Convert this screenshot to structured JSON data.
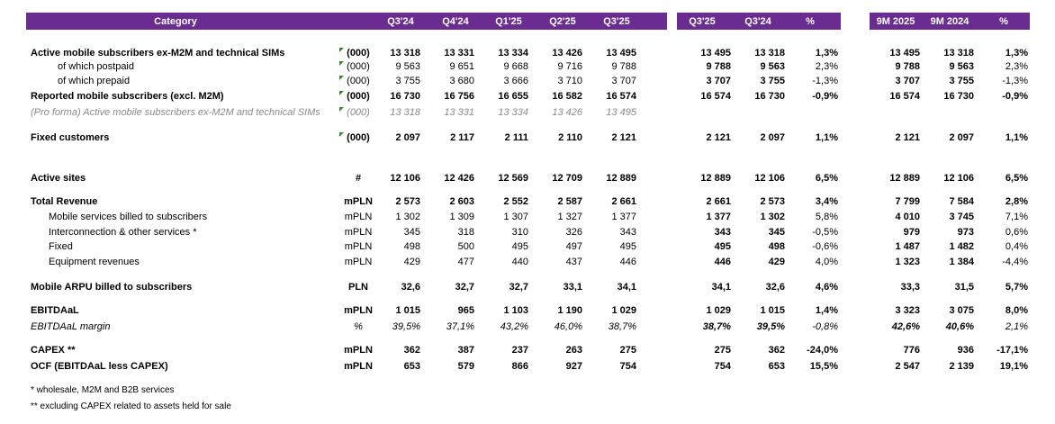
{
  "header": {
    "category": "Category",
    "quarters": [
      "Q3'24",
      "Q4'24",
      "Q1'25",
      "Q2'25",
      "Q3'25"
    ],
    "yoy": [
      "Q3'25",
      "Q3'24",
      "%"
    ],
    "ytd": [
      "9M 2025",
      "9M 2024",
      "%"
    ]
  },
  "colors": {
    "header_bg": "#6b2c91",
    "flag": "#2e8b2e"
  },
  "rows": [
    {
      "label": "Active mobile subscribers ex-M2M and technical SIMs",
      "unit": "(000)",
      "q": [
        "13 318",
        "13 331",
        "13 334",
        "13 426",
        "13 495"
      ],
      "y": [
        "13 495",
        "13 318",
        "1,3%"
      ],
      "t": [
        "13 495",
        "13 318",
        "1,3%"
      ]
    },
    {
      "label": "of which postpaid",
      "unit": "(000)",
      "q": [
        "9 563",
        "9 651",
        "9 668",
        "9 716",
        "9 788"
      ],
      "y": [
        "9 788",
        "9 563",
        "2,3%"
      ],
      "t": [
        "9 788",
        "9 563",
        "2,3%"
      ]
    },
    {
      "label": "of which prepaid",
      "unit": "(000)",
      "q": [
        "3 755",
        "3 680",
        "3 666",
        "3 710",
        "3 707"
      ],
      "y": [
        "3 707",
        "3 755",
        "-1,3%"
      ],
      "t": [
        "3 707",
        "3 755",
        "-1,3%"
      ]
    },
    {
      "label": "Reported mobile subscribers (excl. M2M)",
      "unit": "(000)",
      "q": [
        "16 730",
        "16 756",
        "16 655",
        "16 582",
        "16 574"
      ],
      "y": [
        "16 574",
        "16 730",
        "-0,9%"
      ],
      "t": [
        "16 574",
        "16 730",
        "-0,9%"
      ]
    },
    {
      "label": "(Pro forma) Active mobile subscribers ex-M2M and technical SIMs",
      "unit": "(000)",
      "q": [
        "13 318",
        "13 331",
        "13 334",
        "13 426",
        "13 495"
      ],
      "y": [
        "",
        "",
        ""
      ],
      "t": [
        "",
        "",
        ""
      ]
    },
    {
      "label": "Fixed customers",
      "unit": "(000)",
      "q": [
        "2 097",
        "2 117",
        "2 111",
        "2 110",
        "2 121"
      ],
      "y": [
        "2 121",
        "2 097",
        "1,1%"
      ],
      "t": [
        "2 121",
        "2 097",
        "1,1%"
      ]
    },
    {
      "label": "Active sites",
      "unit": "#",
      "q": [
        "12 106",
        "12 426",
        "12 569",
        "12 709",
        "12 889"
      ],
      "y": [
        "12 889",
        "12 106",
        "6,5%"
      ],
      "t": [
        "12 889",
        "12 106",
        "6,5%"
      ]
    },
    {
      "label": "Total Revenue",
      "unit": "mPLN",
      "q": [
        "2 573",
        "2 603",
        "2 552",
        "2 587",
        "2 661"
      ],
      "y": [
        "2 661",
        "2 573",
        "3,4%"
      ],
      "t": [
        "7 799",
        "7 584",
        "2,8%"
      ]
    },
    {
      "label": "Mobile services billed to subscribers",
      "unit": "mPLN",
      "q": [
        "1 302",
        "1 309",
        "1 307",
        "1 327",
        "1 377"
      ],
      "y": [
        "1 377",
        "1 302",
        "5,8%"
      ],
      "t": [
        "4 010",
        "3 745",
        "7,1%"
      ]
    },
    {
      "label": "Interconnection & other services *",
      "unit": "mPLN",
      "q": [
        "345",
        "318",
        "310",
        "326",
        "343"
      ],
      "y": [
        "343",
        "345",
        "-0,5%"
      ],
      "t": [
        "979",
        "973",
        "0,6%"
      ]
    },
    {
      "label": "Fixed",
      "unit": "mPLN",
      "q": [
        "498",
        "500",
        "495",
        "497",
        "495"
      ],
      "y": [
        "495",
        "498",
        "-0,6%"
      ],
      "t": [
        "1 487",
        "1 482",
        "0,4%"
      ]
    },
    {
      "label": "Equipment revenues",
      "unit": "mPLN",
      "q": [
        "429",
        "477",
        "440",
        "437",
        "446"
      ],
      "y": [
        "446",
        "429",
        "4,0%"
      ],
      "t": [
        "1 323",
        "1 384",
        "-4,4%"
      ]
    },
    {
      "label": "Mobile ARPU billed to subscribers",
      "unit": "PLN",
      "q": [
        "32,6",
        "32,7",
        "32,7",
        "33,1",
        "34,1"
      ],
      "y": [
        "34,1",
        "32,6",
        "4,6%"
      ],
      "t": [
        "33,3",
        "31,5",
        "5,7%"
      ]
    },
    {
      "label": "EBITDAaL",
      "unit": "mPLN",
      "q": [
        "1 015",
        "965",
        "1 103",
        "1 190",
        "1 029"
      ],
      "y": [
        "1 029",
        "1 015",
        "1,4%"
      ],
      "t": [
        "3 323",
        "3 075",
        "8,0%"
      ]
    },
    {
      "label": "EBITDAaL margin",
      "unit": "%",
      "q": [
        "39,5%",
        "37,1%",
        "43,2%",
        "46,0%",
        "38,7%"
      ],
      "y": [
        "38,7%",
        "39,5%",
        "-0,8%"
      ],
      "t": [
        "42,6%",
        "40,6%",
        "2,1%"
      ]
    },
    {
      "label": "CAPEX **",
      "unit": "mPLN",
      "q": [
        "362",
        "387",
        "237",
        "263",
        "275"
      ],
      "y": [
        "275",
        "362",
        "-24,0%"
      ],
      "t": [
        "776",
        "936",
        "-17,1%"
      ]
    },
    {
      "label": "OCF (EBITDAaL less CAPEX)",
      "unit": "mPLN",
      "q": [
        "653",
        "579",
        "866",
        "927",
        "754"
      ],
      "y": [
        "754",
        "653",
        "15,5%"
      ],
      "t": [
        "2 547",
        "2 139",
        "19,1%"
      ]
    }
  ],
  "footnotes": [
    "* wholesale, M2M and B2B services",
    "** excluding CAPEX related to assets held for sale"
  ]
}
